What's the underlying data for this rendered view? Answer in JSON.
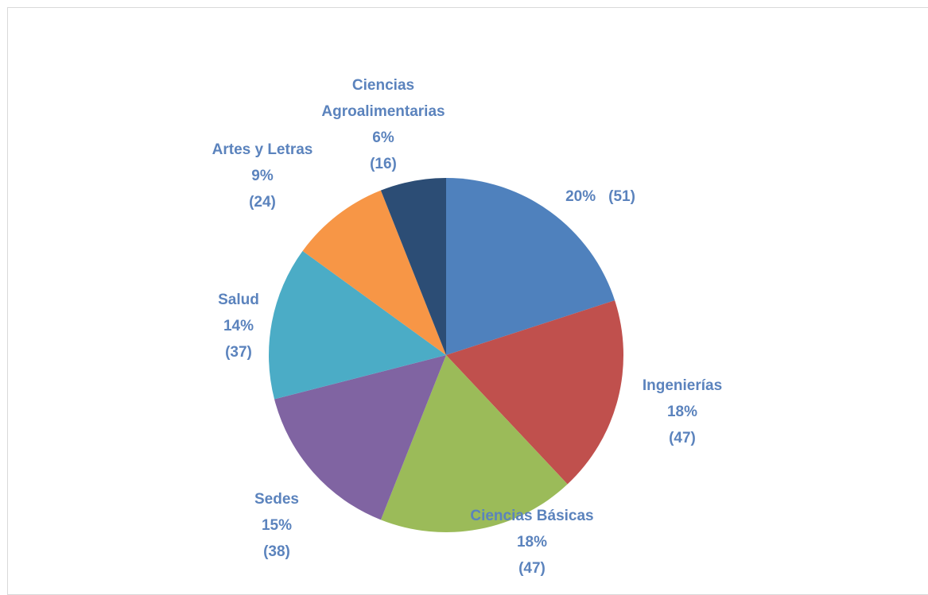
{
  "chart_data": {
    "type": "pie",
    "categories": [
      null,
      "Ingenierías",
      "Ciencias Básicas",
      "Sedes",
      "Salud",
      "Artes y Letras",
      "Ciencias Agroalimentarias"
    ],
    "values": [
      20,
      18,
      18,
      15,
      14,
      9,
      6
    ],
    "value_labels": [
      "20%",
      "18%",
      "18%",
      "15%",
      "14%",
      "9%",
      "6%"
    ],
    "counts": [
      51,
      47,
      47,
      38,
      37,
      24,
      16
    ],
    "count_labels": [
      "(51)",
      "(47)",
      "(47)",
      "(38)",
      "(37)",
      "(24)",
      "(16)"
    ],
    "colors": [
      "#4f81bd",
      "#c0504d",
      "#9bbb59",
      "#8064a2",
      "#4bacc6",
      "#f79646",
      "#2c4d75"
    ]
  }
}
